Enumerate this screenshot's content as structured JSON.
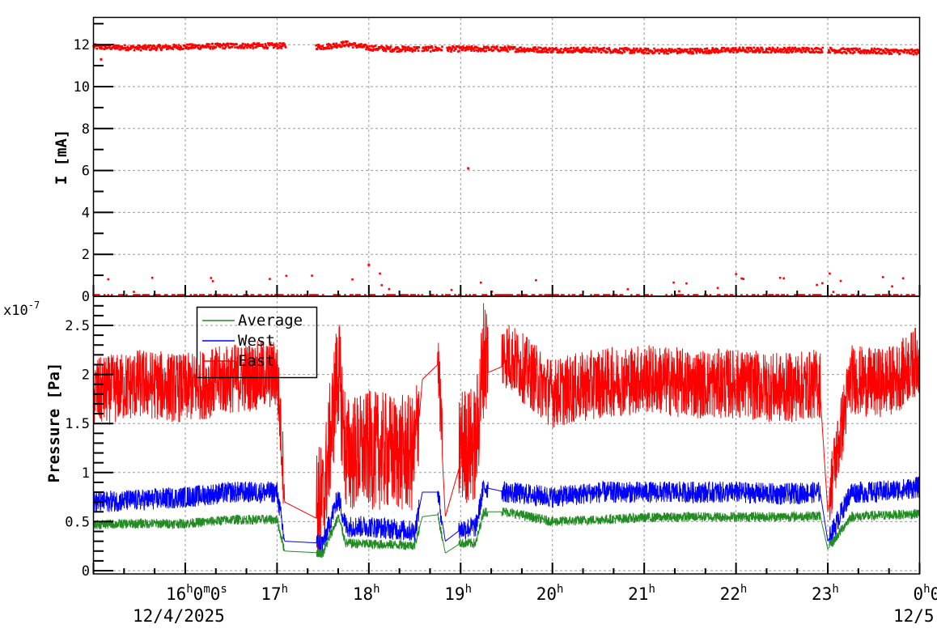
{
  "chart_data": [
    {
      "panel": "top",
      "type": "scatter",
      "title": "",
      "ylabel": "I [mA]",
      "xlabel": "",
      "ylim": [
        0,
        13.2
      ],
      "yticks": [
        0,
        2,
        4,
        6,
        8,
        10,
        12
      ],
      "grid": true,
      "series": [
        {
          "name": "Current",
          "color": "#ff0000",
          "description": "Beam current ~11.7-12.1 mA most of the time with gaps near 17:15-17:25, 18:30-18:35, 18:50-18:55; baseline points at ~0 mA and a few outliers up to ~1.5 mA; one outlier at ~6.1 mA near 19:05",
          "x": [
            "15:00",
            "15:30",
            "16:00",
            "16:30",
            "17:00",
            "17:10",
            "17:30",
            "17:45",
            "18:00",
            "18:15",
            "18:30",
            "18:40",
            "18:55",
            "19:10",
            "19:30",
            "20:00",
            "20:30",
            "21:00",
            "21:30",
            "22:00",
            "22:30",
            "23:00",
            "23:15",
            "23:30",
            "23:59"
          ],
          "values": [
            11.9,
            11.85,
            11.9,
            11.95,
            11.95,
            11.95,
            11.9,
            12.05,
            11.85,
            11.8,
            11.8,
            11.8,
            11.8,
            11.8,
            11.8,
            11.75,
            11.75,
            11.7,
            11.7,
            11.75,
            11.75,
            11.75,
            11.7,
            11.7,
            11.65
          ]
        }
      ],
      "outliers": [
        {
          "x": "19:05",
          "y": 6.1
        },
        {
          "x": "15:05",
          "y": 11.3
        },
        {
          "x": "18:00",
          "y": 1.5
        }
      ]
    },
    {
      "panel": "bottom",
      "type": "line",
      "title": "",
      "ylabel": "Pressure [Pa]",
      "xlabel": "",
      "y_multiplier": "x10^-7",
      "ylim": [
        0,
        2.75
      ],
      "yticks": [
        0,
        0.5,
        1,
        1.5,
        2,
        2.5
      ],
      "grid": true,
      "legend": {
        "position": "upper-left",
        "entries": [
          "Average",
          "West",
          "East"
        ]
      },
      "x": [
        "15:00",
        "15:30",
        "16:00",
        "16:30",
        "17:00",
        "17:05",
        "17:30",
        "17:40",
        "17:45",
        "18:00",
        "18:30",
        "18:35",
        "18:45",
        "18:50",
        "19:00",
        "19:10",
        "19:15",
        "19:30",
        "20:00",
        "20:30",
        "21:00",
        "21:30",
        "22:00",
        "22:30",
        "22:55",
        "23:00",
        "23:15",
        "23:30",
        "23:45",
        "23:59"
      ],
      "series": [
        {
          "name": "Average",
          "color": "#228b22",
          "values": [
            0.47,
            0.48,
            0.48,
            0.52,
            0.52,
            0.2,
            0.18,
            0.55,
            0.28,
            0.27,
            0.26,
            0.55,
            0.57,
            0.18,
            0.28,
            0.28,
            0.6,
            0.6,
            0.5,
            0.52,
            0.54,
            0.55,
            0.55,
            0.55,
            0.56,
            0.22,
            0.55,
            0.56,
            0.57,
            0.58
          ]
        },
        {
          "name": "West",
          "color": "#0000ff",
          "values": [
            0.7,
            0.72,
            0.75,
            0.8,
            0.8,
            0.3,
            0.28,
            0.75,
            0.45,
            0.45,
            0.4,
            0.8,
            0.8,
            0.3,
            0.42,
            0.45,
            0.85,
            0.8,
            0.75,
            0.8,
            0.8,
            0.8,
            0.8,
            0.78,
            0.8,
            0.3,
            0.8,
            0.8,
            0.82,
            0.85
          ]
        },
        {
          "name": "East",
          "color": "#ff0000",
          "values": [
            1.7,
            1.8,
            1.75,
            1.85,
            1.9,
            0.7,
            0.5,
            1.9,
            1.0,
            1.05,
            1.0,
            1.95,
            2.1,
            0.55,
            1.1,
            1.1,
            2.0,
            2.1,
            1.7,
            1.8,
            1.85,
            1.8,
            1.8,
            1.75,
            1.8,
            0.6,
            1.85,
            1.8,
            1.85,
            2.05
          ]
        }
      ]
    }
  ],
  "x_axis": {
    "start": "12/4/2025 15:00",
    "end": "12/5/2025 00:00",
    "tick_labels": [
      {
        "label": "16",
        "sup": "h",
        "extra": "0",
        "sup2": "m",
        "extra2": "0",
        "sup3": "s"
      },
      {
        "label": "17",
        "sup": "h"
      },
      {
        "label": "18",
        "sup": "h"
      },
      {
        "label": "19",
        "sup": "h"
      },
      {
        "label": "20",
        "sup": "h"
      },
      {
        "label": "21",
        "sup": "h"
      },
      {
        "label": "22",
        "sup": "h"
      },
      {
        "label": "23",
        "sup": "h"
      },
      {
        "label": "0",
        "sup": "h",
        "extra": "0"
      }
    ],
    "date_left": "12/4/2025",
    "date_right": "12/5"
  },
  "top_panel": {
    "ylabel": "I [mA]",
    "ytick_labels": [
      "0",
      "2",
      "4",
      "6",
      "8",
      "10",
      "12"
    ]
  },
  "bottom_panel": {
    "ylabel": "Pressure [Pa]",
    "multiplier_base": "x10",
    "multiplier_exp": "-7",
    "ytick_labels": [
      "0",
      "0.5",
      "1",
      "1.5",
      "2",
      "2.5"
    ]
  },
  "legend": {
    "entries": [
      {
        "label": "Average",
        "color": "#228b22"
      },
      {
        "label": "West",
        "color": "#0000ff"
      },
      {
        "label": "East",
        "color": "#ff0000"
      }
    ]
  },
  "colors": {
    "east": "#ff0000",
    "west": "#0000ff",
    "average": "#228b22",
    "grid": "#999999",
    "frame": "#000000"
  }
}
